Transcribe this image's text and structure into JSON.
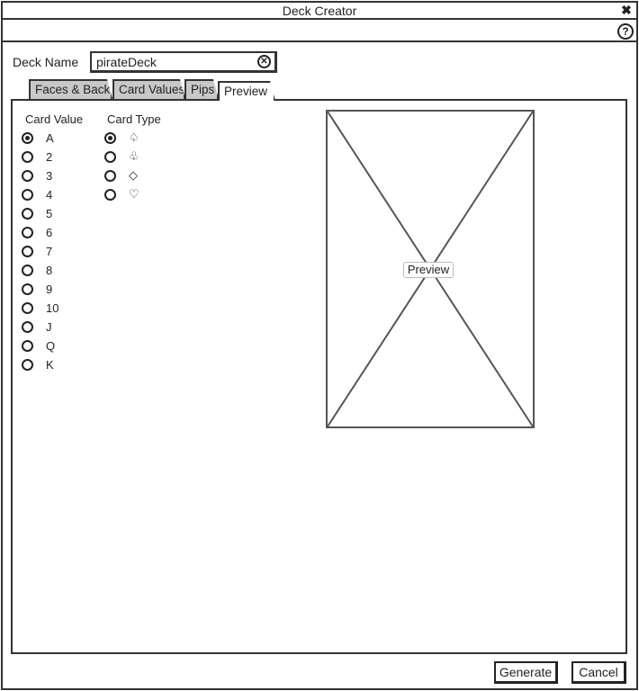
{
  "window": {
    "title": "Deck Creator",
    "close_icon": "close-icon",
    "help_icon": "help-icon",
    "help_glyph": "?"
  },
  "deck_name": {
    "label": "Deck Name",
    "value": "pirateDeck",
    "clear_icon": "clear-icon"
  },
  "tabs": [
    {
      "label": "Faces & Back",
      "active": false
    },
    {
      "label": "Card Values",
      "active": false
    },
    {
      "label": "Pips",
      "active": false
    },
    {
      "label": "Preview",
      "active": true
    }
  ],
  "card_value": {
    "heading": "Card Value",
    "options": [
      "A",
      "2",
      "3",
      "4",
      "5",
      "6",
      "7",
      "8",
      "9",
      "10",
      "J",
      "Q",
      "K"
    ],
    "selected": "A"
  },
  "card_type": {
    "heading": "Card Type",
    "options": [
      {
        "symbol": "♤",
        "icon": "spade-icon"
      },
      {
        "symbol": "♧",
        "icon": "club-icon"
      },
      {
        "symbol": "◇",
        "icon": "diamond-icon"
      },
      {
        "symbol": "♡",
        "icon": "heart-icon"
      }
    ],
    "selected_index": 0
  },
  "preview": {
    "label": "Preview"
  },
  "footer": {
    "generate_label": "Generate",
    "cancel_label": "Cancel"
  }
}
